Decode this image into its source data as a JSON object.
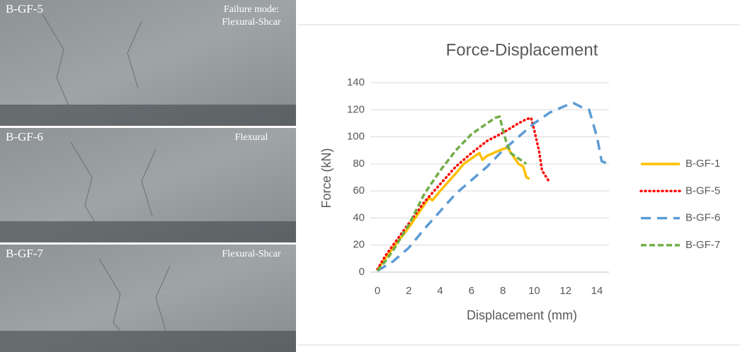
{
  "photos": [
    {
      "label": "B-GF-5",
      "mode": [
        "Failure mode:",
        "Flexural-Shcar"
      ]
    },
    {
      "label": "B-GF-6",
      "mode": [
        "Flexural"
      ]
    },
    {
      "label": "B-GF-7",
      "mode": [
        "Flexural-Shcar"
      ]
    }
  ],
  "chart_data": {
    "type": "line",
    "title": "Force-Displacement",
    "x_label": "Displacement (mm)",
    "y_label": "Force (kN)",
    "xlim": [
      0,
      15
    ],
    "xticks": [
      0,
      2,
      4,
      6,
      8,
      10,
      12,
      14
    ],
    "ylim": [
      0,
      140
    ],
    "yticks": [
      0,
      20,
      40,
      60,
      80,
      100,
      120,
      140
    ],
    "grid": true,
    "legend": "right",
    "series": [
      {
        "name": "B-GF-1",
        "color": "#ffc000",
        "dash": "solid",
        "x": [
          0,
          0.5,
          1,
          2,
          3,
          3.3,
          3.5,
          4,
          5,
          5.5,
          6,
          6.5,
          6.7,
          7,
          8,
          8.3,
          8.7,
          9,
          9.3,
          9.5,
          9.7
        ],
        "values": [
          2,
          10,
          18,
          33,
          50,
          55,
          53,
          60,
          73,
          80,
          84,
          88,
          83,
          86,
          91,
          92,
          85,
          80,
          78,
          70,
          69
        ]
      },
      {
        "name": "B-GF-5",
        "color": "#ff0000",
        "dash": "dotted",
        "x": [
          0,
          0.5,
          1,
          2,
          3,
          4,
          5,
          6,
          7,
          8,
          9,
          9.5,
          9.8,
          10,
          10.3,
          10.5,
          11
        ],
        "values": [
          2,
          12,
          20,
          36,
          52,
          65,
          78,
          88,
          97,
          103,
          110,
          113,
          114,
          105,
          90,
          75,
          66
        ]
      },
      {
        "name": "B-GF-6",
        "color": "#5b9bd5",
        "dash": "long-dash",
        "x": [
          0,
          1,
          2,
          3,
          4,
          5,
          6,
          7,
          8,
          9,
          10,
          11,
          12,
          12.5,
          13,
          13.5,
          14,
          14.3,
          14.7
        ],
        "values": [
          1,
          8,
          18,
          32,
          45,
          58,
          68,
          78,
          90,
          100,
          110,
          118,
          123,
          125,
          122,
          120,
          100,
          82,
          80
        ]
      },
      {
        "name": "B-GF-7",
        "color": "#70ad47",
        "dash": "dash",
        "x": [
          0,
          0.5,
          1,
          2,
          3,
          4,
          5,
          6,
          6.5,
          7,
          7.5,
          7.8,
          8,
          8.2,
          8.5,
          9,
          9.5
        ],
        "values": [
          1,
          8,
          16,
          35,
          58,
          75,
          90,
          102,
          106,
          110,
          114,
          115,
          105,
          97,
          88,
          84,
          80
        ]
      }
    ]
  }
}
